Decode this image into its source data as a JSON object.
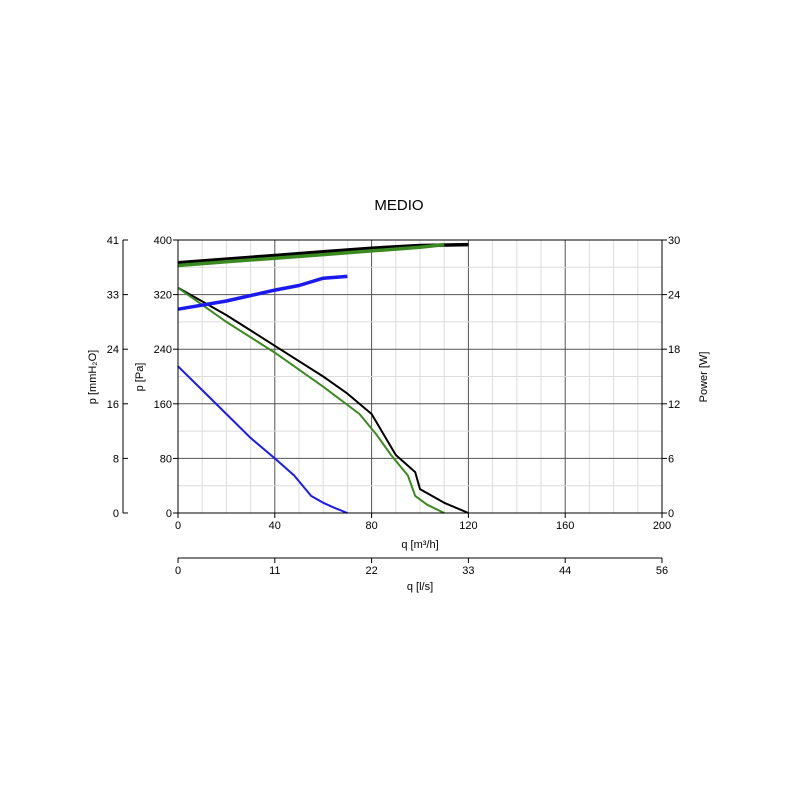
{
  "chart_data": {
    "type": "line",
    "title": "MEDIO",
    "xlabel": "q [m³/h]",
    "x2label": "q [l/s]",
    "ylabel": "p [Pa]",
    "y2label": "p [mmH₂O]",
    "ylabel_right": "Power [W]",
    "xlim": [
      0,
      200
    ],
    "ylim": [
      0,
      400
    ],
    "power_lim": [
      0,
      30
    ],
    "grid": true,
    "x_ticks": [
      "0",
      "40",
      "80",
      "120",
      "160",
      "200"
    ],
    "y_ticks": [
      "0",
      "80",
      "160",
      "240",
      "320",
      "400"
    ],
    "mmh2o_ticks": [
      "0",
      "8",
      "16",
      "24",
      "33",
      "41"
    ],
    "power_ticks": [
      "0",
      "6",
      "12",
      "18",
      "24",
      "30"
    ],
    "ls_ticks": [
      "0",
      "11",
      "22",
      "33",
      "44",
      "56"
    ],
    "series": [
      {
        "axis": "pressure",
        "color": "#000000",
        "points": [
          [
            0,
            330
          ],
          [
            10,
            310
          ],
          [
            20,
            290
          ],
          [
            40,
            245
          ],
          [
            60,
            200
          ],
          [
            70,
            175
          ],
          [
            80,
            145
          ],
          [
            85,
            115
          ],
          [
            90,
            85
          ],
          [
            98,
            60
          ],
          [
            100,
            35
          ],
          [
            110,
            15
          ],
          [
            120,
            0
          ]
        ]
      },
      {
        "axis": "pressure",
        "color": "#3a8a1f",
        "points": [
          [
            0,
            330
          ],
          [
            10,
            305
          ],
          [
            20,
            280
          ],
          [
            40,
            235
          ],
          [
            60,
            185
          ],
          [
            75,
            145
          ],
          [
            82,
            115
          ],
          [
            88,
            85
          ],
          [
            95,
            55
          ],
          [
            98,
            25
          ],
          [
            103,
            12
          ],
          [
            110,
            0
          ]
        ]
      },
      {
        "axis": "pressure",
        "color": "#1a1aee",
        "points": [
          [
            0,
            215
          ],
          [
            10,
            180
          ],
          [
            20,
            145
          ],
          [
            30,
            110
          ],
          [
            40,
            80
          ],
          [
            48,
            55
          ],
          [
            55,
            25
          ],
          [
            60,
            15
          ],
          [
            65,
            7
          ],
          [
            70,
            0
          ]
        ]
      },
      {
        "axis": "power",
        "color": "#000000",
        "points": [
          [
            0,
            27.5
          ],
          [
            20,
            27.9
          ],
          [
            40,
            28.3
          ],
          [
            60,
            28.7
          ],
          [
            80,
            29.1
          ],
          [
            100,
            29.4
          ],
          [
            120,
            29.5
          ]
        ]
      },
      {
        "axis": "power",
        "color": "#3a8a1f",
        "points": [
          [
            0,
            27.2
          ],
          [
            20,
            27.6
          ],
          [
            40,
            28.0
          ],
          [
            60,
            28.4
          ],
          [
            80,
            28.8
          ],
          [
            100,
            29.2
          ],
          [
            110,
            29.5
          ]
        ]
      },
      {
        "axis": "power",
        "color": "#1a1aee",
        "points": [
          [
            0,
            22.4
          ],
          [
            20,
            23.3
          ],
          [
            40,
            24.5
          ],
          [
            50,
            25.0
          ],
          [
            60,
            25.8
          ],
          [
            70,
            26.0
          ]
        ]
      }
    ]
  }
}
